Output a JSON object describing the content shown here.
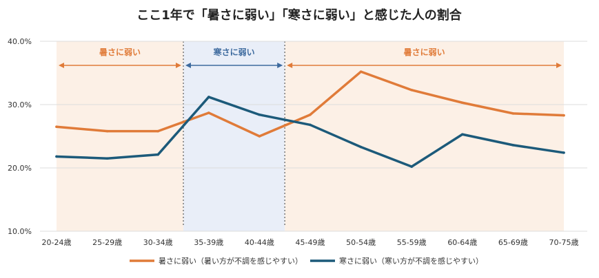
{
  "chart_data": {
    "type": "line",
    "title": "ここ1年で「暑さに弱い」「寒さに弱い」と感じた人の割合",
    "categories": [
      "20-24歳",
      "25-29歳",
      "30-34歳",
      "35-39歳",
      "40-44歳",
      "45-49歳",
      "50-54歳",
      "55-59歳",
      "60-64歳",
      "65-69歳",
      "70-75歳"
    ],
    "series": [
      {
        "name": "暑さに弱い（暑い方が不調を感じやすい）",
        "color": "#e07b39",
        "values": [
          26.5,
          25.8,
          25.8,
          28.7,
          25.0,
          28.4,
          35.2,
          32.3,
          30.3,
          28.6,
          28.3
        ]
      },
      {
        "name": "寒さに弱い（寒い方が不調を感じやすい）",
        "color": "#1c5a7a",
        "values": [
          21.8,
          21.5,
          22.1,
          31.2,
          28.4,
          26.8,
          23.3,
          20.2,
          25.3,
          23.6,
          22.4
        ]
      }
    ],
    "ylim": [
      10.0,
      40.0
    ],
    "yticks": [
      "10.0%",
      "20.0%",
      "30.0%",
      "40.0%"
    ],
    "grid": true,
    "legend_position": "bottom",
    "bands": [
      {
        "label": "暑さに弱い",
        "from": "20-24歳",
        "to": "30-34歳",
        "color": "#e07b39",
        "fill": "#fcf0e6"
      },
      {
        "label": "寒さに弱い",
        "from": "35-39歳",
        "to": "40-44歳",
        "color": "#3d6a9e",
        "fill": "#e9eef8"
      },
      {
        "label": "暑さに弱い",
        "from": "45-49歳",
        "to": "70-75歳",
        "color": "#e07b39",
        "fill": "#fcf0e6"
      }
    ]
  }
}
